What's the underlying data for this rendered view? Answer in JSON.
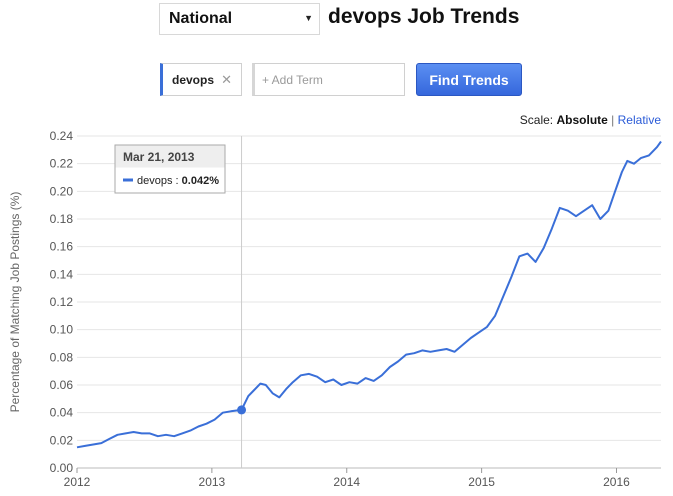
{
  "header": {
    "region": "National",
    "title": "devops Job Trends"
  },
  "search": {
    "term": "devops",
    "add_placeholder": "+ Add Term",
    "find_label": "Find Trends"
  },
  "scale": {
    "label": "Scale:",
    "absolute": "Absolute",
    "separator": "|",
    "relative": "Relative"
  },
  "tooltip": {
    "date": "Mar 21, 2013",
    "series": "devops",
    "sep": ":",
    "value": "0.042%"
  },
  "colors": {
    "series": "#3a6fd8",
    "grid": "#e6e6e6",
    "axis_text": "#555555"
  },
  "chart_data": {
    "type": "line",
    "title": "",
    "xlabel": "",
    "ylabel": "Percentage of Matching Job Postings (%)",
    "xlim": [
      2012.0,
      2016.33
    ],
    "ylim": [
      0,
      0.24
    ],
    "x_ticks": [
      "2012",
      "2013",
      "2014",
      "2015",
      "2016"
    ],
    "y_ticks": [
      "0.00",
      "0.02",
      "0.04",
      "0.06",
      "0.08",
      "0.10",
      "0.12",
      "0.14",
      "0.16",
      "0.18",
      "0.20",
      "0.22",
      "0.24"
    ],
    "grid": true,
    "marker": {
      "x": 2013.22,
      "y": 0.042
    },
    "series": [
      {
        "name": "devops",
        "x": [
          2012.0,
          2012.06,
          2012.12,
          2012.18,
          2012.24,
          2012.3,
          2012.36,
          2012.42,
          2012.48,
          2012.54,
          2012.6,
          2012.66,
          2012.72,
          2012.78,
          2012.84,
          2012.9,
          2012.96,
          2013.02,
          2013.08,
          2013.14,
          2013.22,
          2013.27,
          2013.31,
          2013.36,
          2013.4,
          2013.45,
          2013.5,
          2013.55,
          2013.6,
          2013.66,
          2013.72,
          2013.78,
          2013.84,
          2013.9,
          2013.96,
          2014.02,
          2014.08,
          2014.14,
          2014.2,
          2014.26,
          2014.32,
          2014.38,
          2014.44,
          2014.5,
          2014.56,
          2014.62,
          2014.68,
          2014.74,
          2014.8,
          2014.86,
          2014.92,
          2014.98,
          2015.04,
          2015.1,
          2015.16,
          2015.22,
          2015.28,
          2015.34,
          2015.4,
          2015.46,
          2015.52,
          2015.58,
          2015.64,
          2015.7,
          2015.76,
          2015.82,
          2015.88,
          2015.94,
          2015.99,
          2016.04,
          2016.08,
          2016.13,
          2016.18,
          2016.24,
          2016.3,
          2016.33
        ],
        "values": [
          0.015,
          0.016,
          0.017,
          0.018,
          0.021,
          0.024,
          0.025,
          0.026,
          0.025,
          0.025,
          0.023,
          0.024,
          0.023,
          0.025,
          0.027,
          0.03,
          0.032,
          0.035,
          0.04,
          0.041,
          0.042,
          0.052,
          0.056,
          0.061,
          0.06,
          0.054,
          0.051,
          0.057,
          0.062,
          0.067,
          0.068,
          0.066,
          0.062,
          0.064,
          0.06,
          0.062,
          0.061,
          0.065,
          0.063,
          0.067,
          0.073,
          0.077,
          0.082,
          0.083,
          0.085,
          0.084,
          0.085,
          0.086,
          0.084,
          0.089,
          0.094,
          0.098,
          0.102,
          0.11,
          0.124,
          0.138,
          0.153,
          0.155,
          0.149,
          0.159,
          0.173,
          0.188,
          0.186,
          0.182,
          0.186,
          0.19,
          0.18,
          0.186,
          0.2,
          0.214,
          0.222,
          0.22,
          0.224,
          0.226,
          0.232,
          0.236
        ]
      }
    ]
  }
}
